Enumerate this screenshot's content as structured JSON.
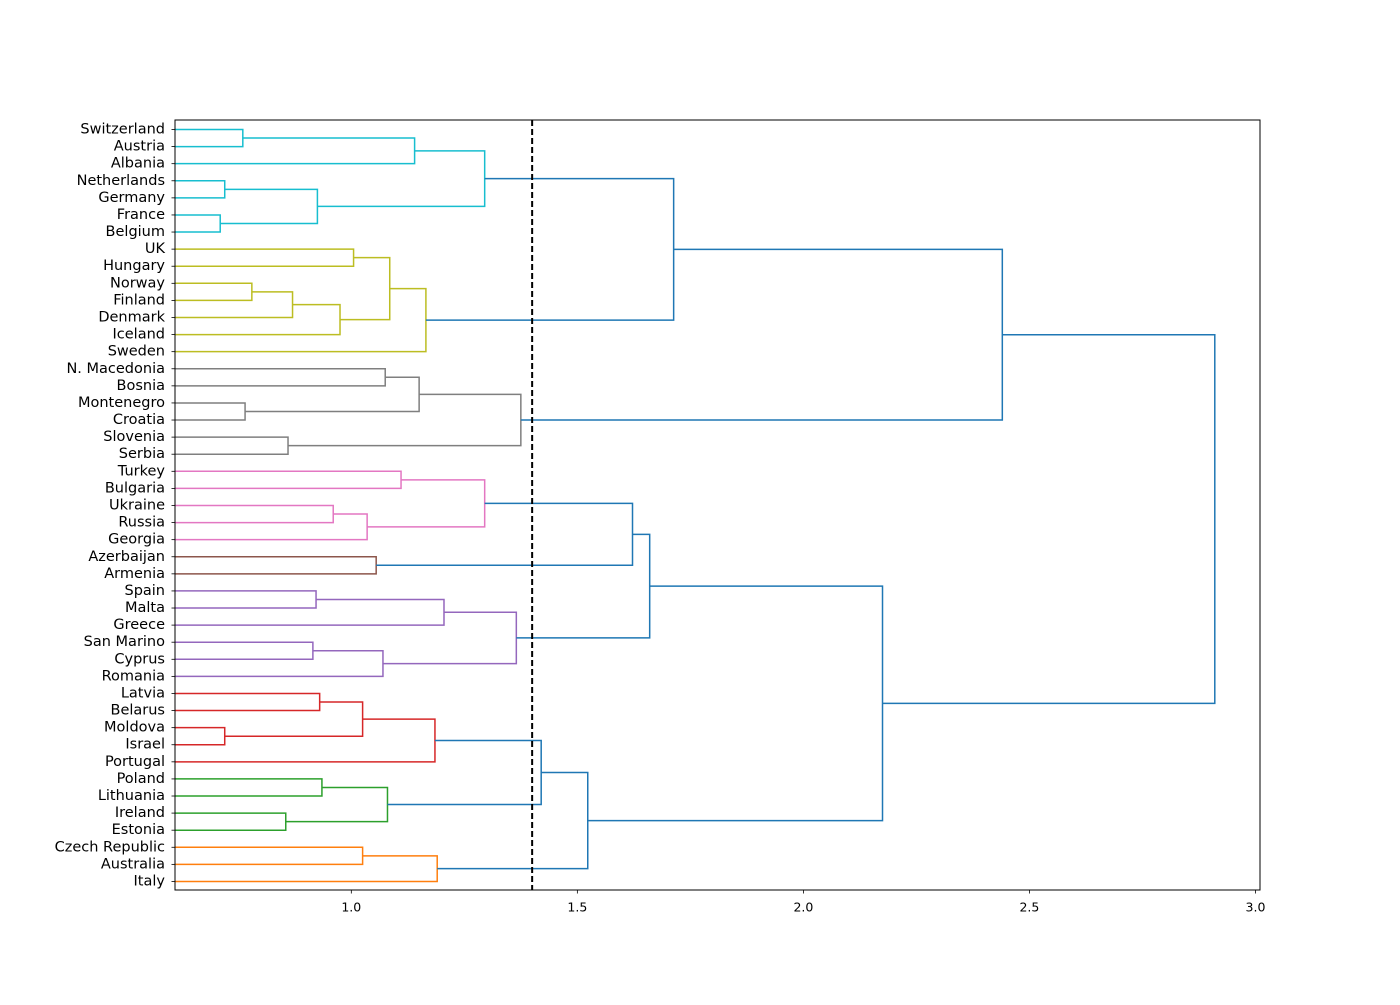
{
  "chart_data": {
    "type": "dendrogram",
    "orientation": "horizontal",
    "xlim": [
      0.61,
      3.01
    ],
    "xticks": [
      1.0,
      1.5,
      2.0,
      2.5,
      3.0
    ],
    "xtick_labels": [
      "1.0",
      "1.5",
      "2.0",
      "2.5",
      "3.0"
    ],
    "cut_threshold": 1.4,
    "leaves": [
      "Switzerland",
      "Austria",
      "Albania",
      "Netherlands",
      "Germany",
      "France",
      "Belgium",
      "UK",
      "Hungary",
      "Norway",
      "Finland",
      "Denmark",
      "Iceland",
      "Sweden",
      "N. Macedonia",
      "Bosnia",
      "Montenegro",
      "Croatia",
      "Slovenia",
      "Serbia",
      "Turkey",
      "Bulgaria",
      "Ukraine",
      "Russia",
      "Georgia",
      "Azerbaijan",
      "Armenia",
      "Spain",
      "Malta",
      "Greece",
      "San Marino",
      "Cyprus",
      "Romania",
      "Latvia",
      "Belarus",
      "Moldova",
      "Israel",
      "Portugal",
      "Poland",
      "Lithuania",
      "Ireland",
      "Estonia",
      "Czech Republic",
      "Australia",
      "Italy"
    ],
    "cluster_colors": {
      "c1": "#17becf",
      "c2": "#bcbd22",
      "c3": "#7f7f7f",
      "c4": "#e377c2",
      "c5": "#8c564b",
      "c6": "#9467bd",
      "c7": "#d62728",
      "c8": "#2ca02c",
      "c9": "#ff7f0e",
      "above": "#1f77b4"
    },
    "merges": [
      {
        "id": "n1",
        "left": "Switzerland",
        "right": "Austria",
        "height": 0.76,
        "color": "c1"
      },
      {
        "id": "n2",
        "left": "n1",
        "right": "Albania",
        "height": 1.14,
        "color": "c1"
      },
      {
        "id": "n3",
        "left": "Netherlands",
        "right": "Germany",
        "height": 0.72,
        "color": "c1"
      },
      {
        "id": "n4",
        "left": "France",
        "right": "Belgium",
        "height": 0.71,
        "color": "c1"
      },
      {
        "id": "n5",
        "left": "n3",
        "right": "n4",
        "height": 0.925,
        "color": "c1"
      },
      {
        "id": "n6",
        "left": "n2",
        "right": "n5",
        "height": 1.295,
        "color": "c1"
      },
      {
        "id": "n7",
        "left": "UK",
        "right": "Hungary",
        "height": 1.005,
        "color": "c2"
      },
      {
        "id": "n8",
        "left": "Norway",
        "right": "Finland",
        "height": 0.78,
        "color": "c2"
      },
      {
        "id": "n9",
        "left": "n8",
        "right": "Denmark",
        "height": 0.87,
        "color": "c2"
      },
      {
        "id": "n10",
        "left": "n9",
        "right": "Iceland",
        "height": 0.975,
        "color": "c2"
      },
      {
        "id": "n11",
        "left": "n7",
        "right": "n10",
        "height": 1.085,
        "color": "c2"
      },
      {
        "id": "n12",
        "left": "n11",
        "right": "Sweden",
        "height": 1.165,
        "color": "c2"
      },
      {
        "id": "n13",
        "left": "n6",
        "right": "n12",
        "height": 1.713,
        "color": "above"
      },
      {
        "id": "n14",
        "left": "N. Macedonia",
        "right": "Bosnia",
        "height": 1.075,
        "color": "c3"
      },
      {
        "id": "n15",
        "left": "Montenegro",
        "right": "Croatia",
        "height": 0.765,
        "color": "c3"
      },
      {
        "id": "n16",
        "left": "n14",
        "right": "n15",
        "height": 1.15,
        "color": "c3"
      },
      {
        "id": "n17",
        "left": "Slovenia",
        "right": "Serbia",
        "height": 0.86,
        "color": "c3"
      },
      {
        "id": "n18",
        "left": "n16",
        "right": "n17",
        "height": 1.375,
        "color": "c3"
      },
      {
        "id": "n19",
        "left": "n13",
        "right": "n18",
        "height": 2.44,
        "color": "above"
      },
      {
        "id": "n20",
        "left": "Turkey",
        "right": "Bulgaria",
        "height": 1.11,
        "color": "c4"
      },
      {
        "id": "n21",
        "left": "Ukraine",
        "right": "Russia",
        "height": 0.96,
        "color": "c4"
      },
      {
        "id": "n22",
        "left": "n21",
        "right": "Georgia",
        "height": 1.035,
        "color": "c4"
      },
      {
        "id": "n23",
        "left": "n20",
        "right": "n22",
        "height": 1.295,
        "color": "c4"
      },
      {
        "id": "n24",
        "left": "Azerbaijan",
        "right": "Armenia",
        "height": 1.055,
        "color": "c5"
      },
      {
        "id": "n25",
        "left": "n23",
        "right": "n24",
        "height": 1.622,
        "color": "above"
      },
      {
        "id": "n26",
        "left": "Spain",
        "right": "Malta",
        "height": 0.922,
        "color": "c6"
      },
      {
        "id": "n27",
        "left": "n26",
        "right": "Greece",
        "height": 1.205,
        "color": "c6"
      },
      {
        "id": "n28",
        "left": "San Marino",
        "right": "Cyprus",
        "height": 0.915,
        "color": "c6"
      },
      {
        "id": "n29",
        "left": "n28",
        "right": "Romania",
        "height": 1.07,
        "color": "c6"
      },
      {
        "id": "n30",
        "left": "n27",
        "right": "n29",
        "height": 1.365,
        "color": "c6"
      },
      {
        "id": "n31",
        "left": "n25",
        "right": "n30",
        "height": 1.66,
        "color": "above"
      },
      {
        "id": "n32",
        "left": "Latvia",
        "right": "Belarus",
        "height": 0.93,
        "color": "c7"
      },
      {
        "id": "n33",
        "left": "Moldova",
        "right": "Israel",
        "height": 0.72,
        "color": "c7"
      },
      {
        "id": "n34",
        "left": "n32",
        "right": "n33",
        "height": 1.025,
        "color": "c7"
      },
      {
        "id": "n35",
        "left": "n34",
        "right": "Portugal",
        "height": 1.185,
        "color": "c7"
      },
      {
        "id": "n36",
        "left": "Poland",
        "right": "Lithuania",
        "height": 0.935,
        "color": "c8"
      },
      {
        "id": "n37",
        "left": "Ireland",
        "right": "Estonia",
        "height": 0.855,
        "color": "c8"
      },
      {
        "id": "n38",
        "left": "n36",
        "right": "n37",
        "height": 1.08,
        "color": "c8"
      },
      {
        "id": "n39",
        "left": "n35",
        "right": "n38",
        "height": 1.42,
        "color": "above"
      },
      {
        "id": "n40",
        "left": "Czech Republic",
        "right": "Australia",
        "height": 1.025,
        "color": "c9"
      },
      {
        "id": "n41",
        "left": "n40",
        "right": "Italy",
        "height": 1.19,
        "color": "c9"
      },
      {
        "id": "n42",
        "left": "n39",
        "right": "n41",
        "height": 1.523,
        "color": "above"
      },
      {
        "id": "n43",
        "left": "n31",
        "right": "n42",
        "height": 2.175,
        "color": "above"
      },
      {
        "id": "n44",
        "left": "n19",
        "right": "n43",
        "height": 2.91,
        "color": "above"
      }
    ]
  }
}
